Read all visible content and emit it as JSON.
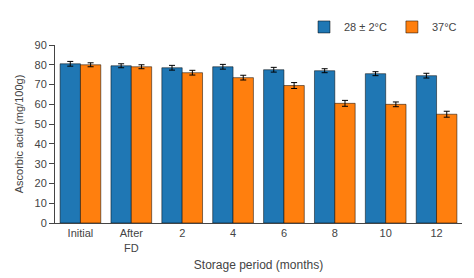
{
  "chart_data": {
    "type": "bar",
    "categories": [
      "Initial",
      "After\nFD",
      "2",
      "4",
      "6",
      "8",
      "10",
      "12"
    ],
    "series": [
      {
        "name": "28 ± 2°C",
        "values": [
          80.5,
          79.5,
          78.5,
          79.0,
          77.5,
          77.0,
          75.5,
          74.5
        ],
        "error": [
          1.2,
          1.0,
          1.2,
          1.2,
          1.2,
          1.0,
          1.0,
          1.2
        ]
      },
      {
        "name": "37°C",
        "values": [
          80.0,
          79.0,
          76.0,
          73.5,
          69.5,
          60.5,
          60.0,
          55.0
        ],
        "error": [
          1.0,
          1.0,
          1.2,
          1.2,
          1.5,
          1.5,
          1.2,
          1.5
        ]
      }
    ],
    "xlabel": "Storage period (months)",
    "ylabel": "Ascorbic acid (mg/100g)",
    "ylim": [
      0,
      90
    ],
    "yticks": [
      0,
      10,
      20,
      30,
      40,
      50,
      60,
      70,
      80,
      90
    ],
    "grid": false,
    "legend": "upper right"
  }
}
